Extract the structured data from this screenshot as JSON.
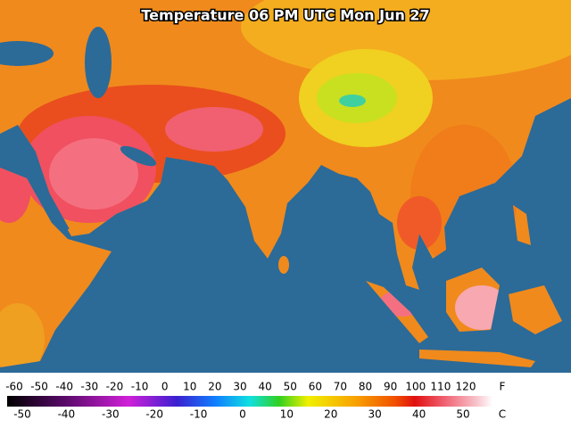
{
  "title": "Temperature 06 PM UTC Mon Jun 27",
  "scale": {
    "f_unit": "F",
    "f_ticks": [
      -60,
      -50,
      -40,
      -30,
      -20,
      -10,
      0,
      10,
      20,
      30,
      40,
      50,
      60,
      70,
      80,
      90,
      100,
      110,
      120
    ],
    "c_unit": "C",
    "c_ticks": [
      -50,
      -40,
      -30,
      -20,
      -10,
      0,
      10,
      20,
      30,
      40,
      50
    ]
  }
}
